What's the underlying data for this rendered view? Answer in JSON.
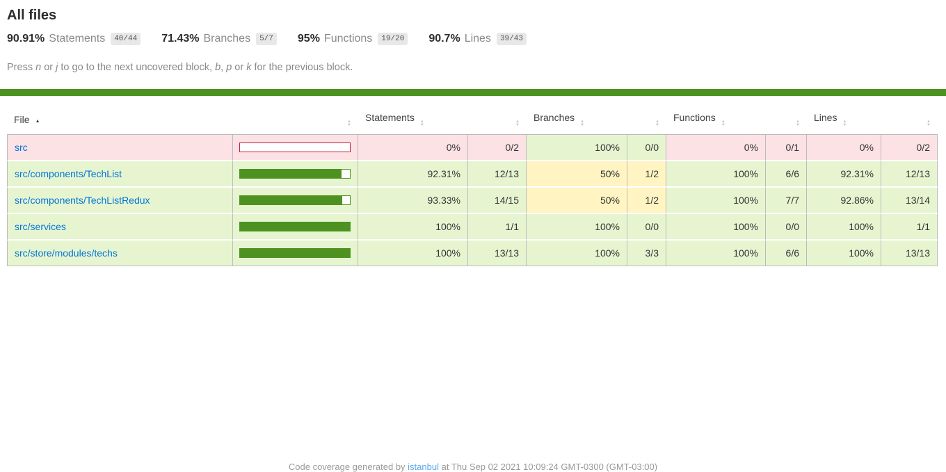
{
  "title": "All files",
  "summary": {
    "items": [
      {
        "pct": "90.91%",
        "label": "Statements",
        "fraction": "40/44"
      },
      {
        "pct": "71.43%",
        "label": "Branches",
        "fraction": "5/7"
      },
      {
        "pct": "95%",
        "label": "Functions",
        "fraction": "19/20"
      },
      {
        "pct": "90.7%",
        "label": "Lines",
        "fraction": "39/43"
      }
    ]
  },
  "hint": {
    "part1": "Press ",
    "key1": "n",
    "part2": " or ",
    "key2": "j",
    "part3": " to go to the next uncovered block, ",
    "key3": "b",
    "part4": ", ",
    "key4": "p",
    "part5": " or ",
    "key5": "k",
    "part6": " for the previous block."
  },
  "table": {
    "headers": {
      "file": "File",
      "statements": "Statements",
      "branches": "Branches",
      "functions": "Functions",
      "lines": "Lines"
    },
    "sort_indicator": "▲",
    "rows": [
      {
        "file": "src",
        "bar_pct": 0,
        "statements": {
          "pct": "0%",
          "fraction": "0/2"
        },
        "branches": {
          "pct": "100%",
          "fraction": "0/0"
        },
        "functions": {
          "pct": "0%",
          "fraction": "0/1"
        },
        "lines": {
          "pct": "0%",
          "fraction": "0/2"
        }
      },
      {
        "file": "src/components/TechList",
        "bar_pct": 92.31,
        "statements": {
          "pct": "92.31%",
          "fraction": "12/13"
        },
        "branches": {
          "pct": "50%",
          "fraction": "1/2"
        },
        "functions": {
          "pct": "100%",
          "fraction": "6/6"
        },
        "lines": {
          "pct": "92.31%",
          "fraction": "12/13"
        }
      },
      {
        "file": "src/components/TechListRedux",
        "bar_pct": 93.33,
        "statements": {
          "pct": "93.33%",
          "fraction": "14/15"
        },
        "branches": {
          "pct": "50%",
          "fraction": "1/2"
        },
        "functions": {
          "pct": "100%",
          "fraction": "7/7"
        },
        "lines": {
          "pct": "92.86%",
          "fraction": "13/14"
        }
      },
      {
        "file": "src/services",
        "bar_pct": 100,
        "statements": {
          "pct": "100%",
          "fraction": "1/1"
        },
        "branches": {
          "pct": "100%",
          "fraction": "0/0"
        },
        "functions": {
          "pct": "100%",
          "fraction": "0/0"
        },
        "lines": {
          "pct": "100%",
          "fraction": "1/1"
        }
      },
      {
        "file": "src/store/modules/techs",
        "bar_pct": 100,
        "statements": {
          "pct": "100%",
          "fraction": "13/13"
        },
        "branches": {
          "pct": "100%",
          "fraction": "3/3"
        },
        "functions": {
          "pct": "100%",
          "fraction": "6/6"
        },
        "lines": {
          "pct": "100%",
          "fraction": "13/13"
        }
      }
    ]
  },
  "footer": {
    "prefix": "Code coverage generated by ",
    "link": "istanbul",
    "suffix": " at Thu Sep 02 2021 10:09:24 GMT-0300 (GMT-03:00)"
  },
  "colors": {
    "high_bg": "#e6f5d0",
    "medium_bg": "#fff4c2",
    "low_bg": "#fce1e5",
    "fill_green": "#4d9221",
    "fill_red": "#c21f39",
    "link_blue": "#0074d9"
  }
}
